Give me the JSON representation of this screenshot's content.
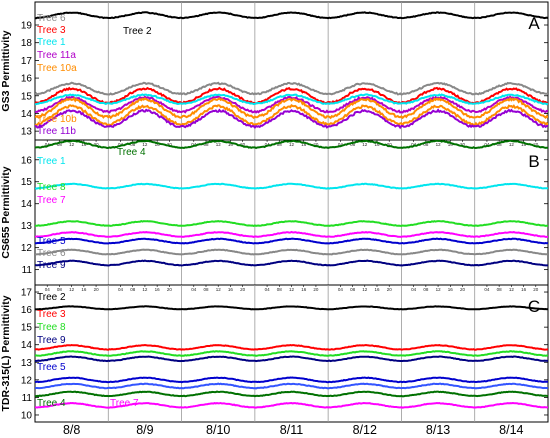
{
  "chart_data": {
    "type": "line",
    "x_tick_labels": [
      "8/8",
      "8/9",
      "8/10",
      "8/11",
      "8/12",
      "8/13",
      "8/14"
    ],
    "hour_tick_labels": [
      "04",
      "08",
      "12",
      "16",
      "20"
    ],
    "panels": [
      {
        "id": "A",
        "ylabel": "GS3 Permittivity",
        "ylim": [
          12.5,
          20.3
        ],
        "yticks": [
          13,
          14,
          15,
          16,
          17,
          18,
          19
        ],
        "series": [
          {
            "name": "Tree 6",
            "color": "#888888",
            "mean": 15.4,
            "amp": 0.3,
            "legend": true
          },
          {
            "name": "Tree 3",
            "color": "#ff0000",
            "mean": 15.0,
            "amp": 0.4,
            "legend": true
          },
          {
            "name": "Tree 1",
            "color": "#00e5ee",
            "mean": 14.8,
            "amp": 0.25,
            "legend": true
          },
          {
            "name": "Tree 11a",
            "color": "#b000c8",
            "mean": 14.5,
            "amp": 0.4,
            "legend": true
          },
          {
            "name": "Tree 10a",
            "color": "#ff8c00",
            "mean": 14.3,
            "amp": 0.5,
            "legend": true
          },
          {
            "name": "Tree 10b",
            "color": "#ff8c00",
            "mean": 13.9,
            "amp": 0.5,
            "legend": true
          },
          {
            "name": "Tree 11b",
            "color": "#9400d3",
            "mean": 13.7,
            "amp": 0.45,
            "legend": true
          },
          {
            "name": "Tree 2",
            "color": "#000000",
            "mean": 19.55,
            "amp": 0.15,
            "legend": true
          }
        ]
      },
      {
        "id": "B",
        "ylabel": "CS655 Permittivity",
        "ylim": [
          10.3,
          16.9
        ],
        "yticks": [
          11,
          12,
          13,
          14,
          15,
          16
        ],
        "series": [
          {
            "name": "Tree 4",
            "color": "#007000",
            "mean": 16.7,
            "amp": 0.15,
            "legend": true
          },
          {
            "name": "Tree 1",
            "color": "#00e5ee",
            "mean": 14.8,
            "amp": 0.1,
            "legend": true
          },
          {
            "name": "Tree 8",
            "color": "#22dd22",
            "mean": 13.1,
            "amp": 0.1,
            "legend": true
          },
          {
            "name": "Tree 7",
            "color": "#ff00ff",
            "mean": 12.6,
            "amp": 0.1,
            "legend": true
          },
          {
            "name": "Tree 5",
            "color": "#0000cd",
            "mean": 12.3,
            "amp": 0.1,
            "legend": true
          },
          {
            "name": "Tree 6",
            "color": "#888888",
            "mean": 11.8,
            "amp": 0.1,
            "legend": true
          },
          {
            "name": "Tree 9",
            "color": "#000080",
            "mean": 11.3,
            "amp": 0.1,
            "legend": true
          }
        ]
      },
      {
        "id": "C",
        "ylabel": "TDR-315(L) Permittivity",
        "ylim": [
          9.6,
          17.4
        ],
        "yticks": [
          10,
          11,
          12,
          13,
          14,
          15,
          16,
          17
        ],
        "series": [
          {
            "name": "Tree 2",
            "color": "#000000",
            "mean": 16.1,
            "amp": 0.08,
            "legend": true
          },
          {
            "name": "Tree 3",
            "color": "#ff0000",
            "mean": 13.85,
            "amp": 0.12,
            "legend": true
          },
          {
            "name": "Tree 8",
            "color": "#22dd22",
            "mean": 13.5,
            "amp": 0.12,
            "legend": true
          },
          {
            "name": "Tree 9",
            "color": "#000080",
            "mean": 13.2,
            "amp": 0.12,
            "legend": true
          },
          {
            "name": "Tree 5",
            "color": "#0000cd",
            "mean": 12.0,
            "amp": 0.12,
            "legend": true
          },
          {
            "name": "",
            "color": "#3355ff",
            "mean": 11.65,
            "amp": 0.12,
            "legend": false
          },
          {
            "name": "Tree 4",
            "color": "#007000",
            "mean": 11.2,
            "amp": 0.12,
            "legend": true
          },
          {
            "name": "Tree 7",
            "color": "#ff00ff",
            "mean": 10.55,
            "amp": 0.12,
            "legend": true
          }
        ]
      }
    ]
  }
}
